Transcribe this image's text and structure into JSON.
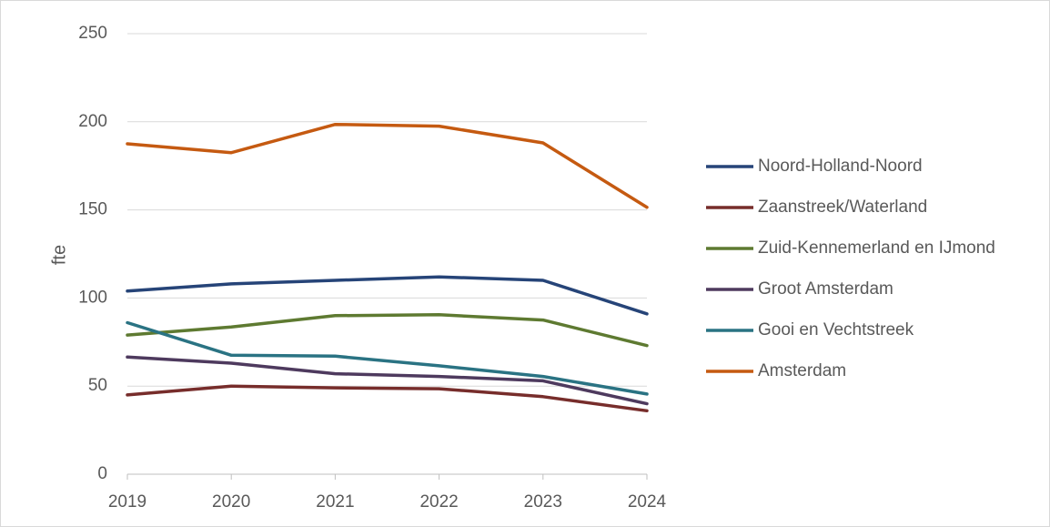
{
  "chart_data": {
    "type": "line",
    "title": "",
    "xlabel": "",
    "ylabel": "fte",
    "x": [
      "2019",
      "2020",
      "2021",
      "2022",
      "2023",
      "2024"
    ],
    "ylim": [
      0,
      250
    ],
    "yticks": [
      "0",
      "50",
      "100",
      "150",
      "200",
      "250"
    ],
    "grid": "horizontal",
    "legend_position": "right",
    "series": [
      {
        "name": "Noord-Holland-Noord",
        "color": "#264478",
        "values": [
          104,
          108,
          110,
          112,
          110,
          91
        ]
      },
      {
        "name": "Zaanstreek/Waterland",
        "color": "#772D2B",
        "values": [
          45,
          50,
          49,
          48.5,
          44,
          36
        ]
      },
      {
        "name": "Zuid-Kennemerland en IJmond",
        "color": "#5E7A31",
        "values": [
          79,
          83.5,
          90,
          90.5,
          87.5,
          73
        ]
      },
      {
        "name": "Groot Amsterdam",
        "color": "#4E3A5E",
        "values": [
          66.5,
          63,
          57,
          55.5,
          53,
          40
        ]
      },
      {
        "name": "Gooi en Vechtstreek",
        "color": "#2A7383",
        "values": [
          86,
          67.5,
          67,
          61.5,
          55.5,
          45.5
        ]
      },
      {
        "name": "Amsterdam",
        "color": "#C55A11",
        "values": [
          187.5,
          182.5,
          198.5,
          197.5,
          188,
          151.5
        ]
      }
    ]
  }
}
